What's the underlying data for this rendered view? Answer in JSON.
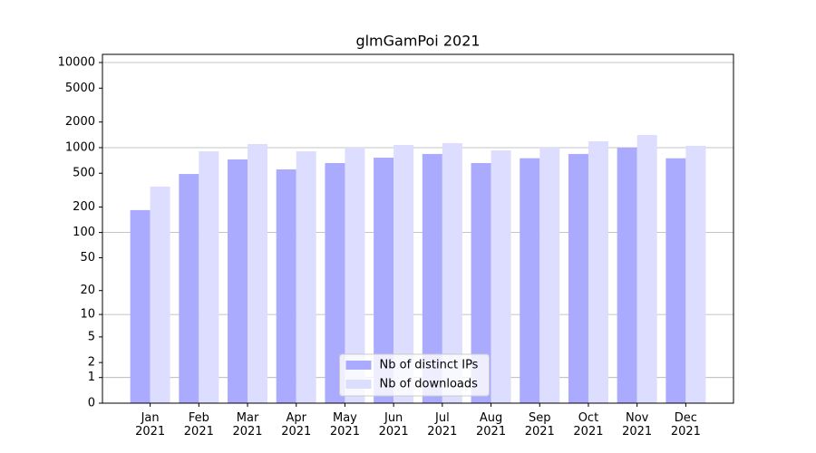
{
  "chart_data": {
    "type": "bar",
    "title": "glmGamPoi 2021",
    "categories": [
      "Jan\n2021",
      "Feb\n2021",
      "Mar\n2021",
      "Apr\n2021",
      "May\n2021",
      "Jun\n2021",
      "Jul\n2021",
      "Aug\n2021",
      "Sep\n2021",
      "Oct\n2021",
      "Nov\n2021",
      "Dec\n2021"
    ],
    "series": [
      {
        "name": "Nb of distinct IPs",
        "color": "#aaaaff",
        "values": [
          184,
          490,
          727,
          555,
          659,
          763,
          843,
          659,
          751,
          843,
          1000,
          750
        ]
      },
      {
        "name": "Nb of downloads",
        "color": "#ddddff",
        "values": [
          348,
          906,
          1103,
          906,
          1000,
          1076,
          1130,
          929,
          1000,
          1186,
          1409,
          1050
        ]
      }
    ],
    "scale": "log1p",
    "ylim": [
      0,
      12470
    ],
    "yticks": [
      0,
      1,
      2,
      5,
      10,
      20,
      50,
      100,
      200,
      500,
      1000,
      2000,
      5000,
      10000
    ],
    "grid": true,
    "legend": "lower center"
  }
}
